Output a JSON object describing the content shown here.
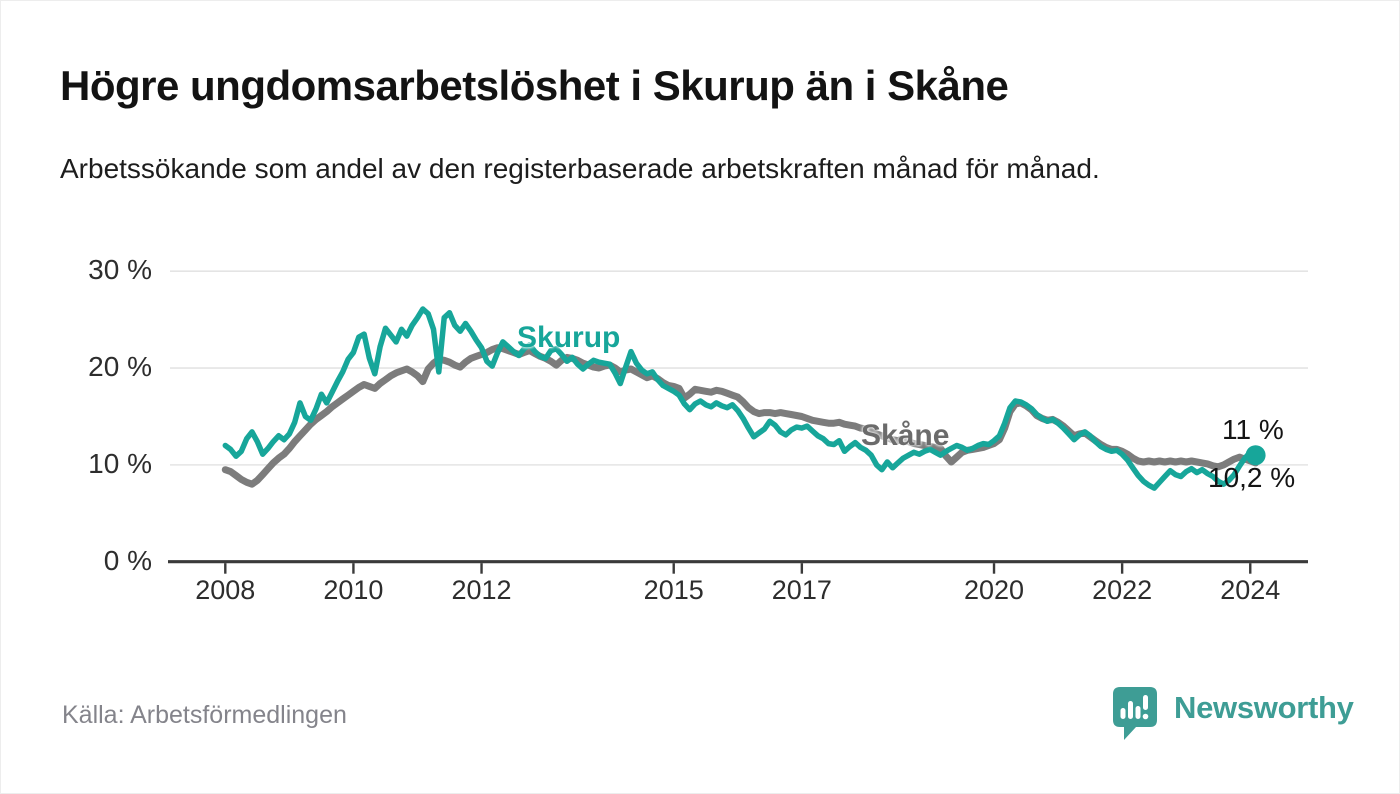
{
  "header": {
    "title": "Högre ungdomsarbetslöshet i Skurup än i Skåne",
    "subtitle": "Arbetssökande som andel av den registerbaserade arbetskraften månad för månad."
  },
  "chart_data": {
    "type": "line",
    "unit": "%",
    "frequency": "monthly",
    "x_start": "2008-01",
    "x_end": "2024-02",
    "ylim": [
      0,
      30
    ],
    "grid": "horizontal",
    "y_ticks": [
      {
        "value": 0,
        "label": "0 %"
      },
      {
        "value": 10,
        "label": "10 %"
      },
      {
        "value": 20,
        "label": "20 %"
      },
      {
        "value": 30,
        "label": "30 %"
      }
    ],
    "x_ticks": [
      {
        "year": 2008,
        "label": "2008"
      },
      {
        "year": 2010,
        "label": "2010"
      },
      {
        "year": 2012,
        "label": "2012"
      },
      {
        "year": 2015,
        "label": "2015"
      },
      {
        "year": 2017,
        "label": "2017"
      },
      {
        "year": 2020,
        "label": "2020"
      },
      {
        "year": 2022,
        "label": "2022"
      },
      {
        "year": 2024,
        "label": "2024"
      }
    ],
    "series": [
      {
        "name": "Skurup",
        "color": "#17A69A",
        "end_value_label": "11 %",
        "values": [
          12.0,
          11.6,
          10.9,
          11.4,
          12.7,
          13.4,
          12.4,
          11.1,
          11.7,
          12.4,
          13.0,
          12.6,
          13.2,
          14.4,
          16.4,
          15.0,
          14.6,
          15.8,
          17.3,
          16.4,
          17.5,
          18.6,
          19.6,
          20.9,
          21.6,
          23.2,
          23.5,
          21.0,
          19.4,
          22.2,
          24.1,
          23.4,
          22.7,
          24.0,
          23.3,
          24.4,
          25.2,
          26.1,
          25.6,
          24.0,
          19.6,
          25.2,
          25.7,
          24.4,
          23.8,
          24.6,
          23.8,
          22.9,
          22.1,
          20.7,
          20.2,
          21.6,
          22.7,
          22.2,
          21.7,
          21.3,
          22.0,
          22.4,
          21.7,
          21.2,
          21.0,
          21.8,
          22.0,
          21.4,
          20.7,
          21.1,
          20.4,
          19.9,
          20.4,
          20.8,
          20.6,
          20.5,
          20.4,
          19.5,
          18.4,
          20.1,
          21.7,
          20.5,
          19.8,
          19.4,
          19.6,
          18.8,
          18.2,
          17.9,
          17.6,
          17.2,
          16.3,
          15.7,
          16.3,
          16.6,
          16.2,
          16.0,
          16.4,
          16.1,
          15.9,
          16.2,
          15.6,
          14.8,
          13.8,
          12.9,
          13.3,
          13.7,
          14.5,
          14.1,
          13.4,
          13.1,
          13.6,
          13.9,
          13.8,
          14.0,
          13.5,
          13.0,
          12.7,
          12.2,
          12.1,
          12.5,
          11.4,
          11.9,
          12.3,
          11.8,
          11.5,
          11.0,
          10.0,
          9.5,
          10.3,
          9.7,
          10.2,
          10.7,
          11.0,
          11.3,
          11.1,
          11.4,
          11.6,
          11.3,
          11.0,
          11.4,
          11.7,
          12.0,
          11.8,
          11.5,
          11.7,
          12.0,
          12.2,
          12.1,
          12.5,
          13.0,
          14.3,
          15.9,
          16.6,
          16.5,
          16.2,
          15.8,
          15.2,
          14.8,
          14.5,
          14.7,
          14.3,
          13.8,
          13.2,
          12.6,
          13.1,
          13.4,
          13.0,
          12.4,
          11.9,
          11.6,
          11.4,
          11.5,
          11.1,
          10.5,
          9.7,
          8.9,
          8.3,
          7.9,
          7.6,
          8.2,
          8.8,
          9.4,
          9.0,
          8.8,
          9.3,
          9.6,
          9.2,
          9.5,
          9.1,
          8.8,
          8.3,
          8.0,
          8.4,
          9.0,
          9.9,
          10.7,
          11.3,
          11.0
        ]
      },
      {
        "name": "Skåne",
        "color": "#7C7C7C",
        "end_value_label": "10,2 %",
        "values": [
          9.5,
          9.3,
          8.9,
          8.5,
          8.2,
          8.0,
          8.4,
          9.0,
          9.6,
          10.2,
          10.7,
          11.1,
          11.7,
          12.4,
          13.0,
          13.6,
          14.2,
          14.7,
          15.1,
          15.5,
          16.0,
          16.4,
          16.8,
          17.2,
          17.6,
          18.0,
          18.3,
          18.1,
          17.9,
          18.4,
          18.8,
          19.2,
          19.5,
          19.7,
          19.9,
          19.6,
          19.2,
          18.6,
          19.9,
          20.5,
          20.9,
          20.8,
          20.6,
          20.3,
          20.1,
          20.6,
          21.0,
          21.2,
          21.4,
          21.6,
          21.9,
          22.1,
          22.0,
          21.8,
          21.6,
          21.4,
          21.6,
          21.8,
          21.5,
          21.2,
          21.0,
          20.7,
          20.3,
          20.8,
          21.1,
          21.0,
          20.8,
          20.5,
          20.3,
          20.1,
          20.0,
          20.2,
          20.3,
          20.0,
          19.6,
          19.8,
          19.9,
          19.6,
          19.3,
          19.0,
          19.2,
          18.9,
          18.5,
          18.2,
          18.1,
          17.9,
          16.9,
          17.3,
          17.8,
          17.7,
          17.6,
          17.5,
          17.7,
          17.6,
          17.4,
          17.2,
          17.0,
          16.5,
          15.9,
          15.5,
          15.3,
          15.4,
          15.4,
          15.3,
          15.4,
          15.3,
          15.2,
          15.1,
          15.0,
          14.8,
          14.6,
          14.5,
          14.4,
          14.3,
          14.3,
          14.4,
          14.2,
          14.1,
          14.0,
          13.8,
          13.7,
          13.5,
          13.2,
          13.0,
          12.8,
          12.6,
          12.5,
          12.7,
          12.4,
          12.2,
          12.1,
          12.0,
          11.9,
          11.8,
          11.7,
          10.9,
          10.3,
          10.8,
          11.3,
          11.5,
          11.6,
          11.7,
          11.8,
          12.0,
          12.2,
          12.6,
          13.8,
          15.5,
          16.3,
          16.4,
          16.1,
          15.7,
          15.1,
          14.8,
          14.6,
          14.7,
          14.4,
          14.0,
          13.5,
          13.0,
          13.2,
          13.3,
          12.9,
          12.5,
          12.1,
          11.8,
          11.6,
          11.6,
          11.4,
          11.1,
          10.7,
          10.4,
          10.3,
          10.4,
          10.3,
          10.4,
          10.3,
          10.4,
          10.3,
          10.4,
          10.3,
          10.4,
          10.3,
          10.2,
          10.1,
          9.9,
          9.8,
          10.0,
          10.3,
          10.6,
          10.8,
          10.6,
          10.4,
          10.2
        ]
      }
    ],
    "legend_position": "inline-labels"
  },
  "annotations": {
    "skurup_label": "Skurup",
    "skane_label": "Skåne",
    "skurup_end": "11 %",
    "skane_end": "10,2 %"
  },
  "footer": {
    "source": "Källa: Arbetsförmedlingen",
    "brand": "Newsworthy"
  },
  "colors": {
    "skurup_teal": "#17A69A",
    "skane_gray": "#7C7C7C",
    "logo_teal": "#3E9D95",
    "gridline": "#E4E4E4",
    "axis": "#3A3A3A",
    "title_text": "#131313",
    "source_text": "#84848B"
  }
}
